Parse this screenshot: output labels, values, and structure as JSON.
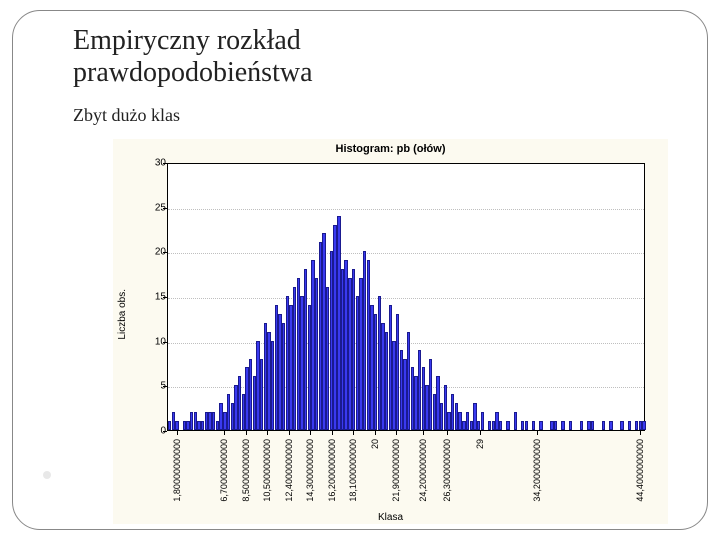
{
  "title_line1": "Empiryczny rozkład",
  "title_line2": "prawdopodobieństwa",
  "subtitle": "Zbyt dużo klas",
  "chart": {
    "type": "histogram",
    "title": "Histogram: pb (ołów)",
    "ylabel": "Liczba obs.",
    "xlabel": "Klasa",
    "background_color": "#fcfaf0",
    "plot_background": "#ffffff",
    "bar_color": "#3a3af0",
    "bar_border": "#1a1a90",
    "grid_color": "#bfbfbf",
    "border_color": "#000000",
    "title_fontsize": 11,
    "label_fontsize": 10,
    "tick_fontsize": 10,
    "xtick_fontsize": 9,
    "ylim": [
      0,
      30
    ],
    "ytick_step": 5,
    "yticks": [
      0,
      5,
      10,
      15,
      20,
      25,
      30
    ],
    "xtick_labels": [
      {
        "pos": 0.02,
        "text": "1,80000000000"
      },
      {
        "pos": 0.12,
        "text": "6,70000000000"
      },
      {
        "pos": 0.165,
        "text": "8,50000000000"
      },
      {
        "pos": 0.21,
        "text": "10,5000000000"
      },
      {
        "pos": 0.255,
        "text": "12,4000000000"
      },
      {
        "pos": 0.3,
        "text": "14,3000000000"
      },
      {
        "pos": 0.345,
        "text": "16,2000000000"
      },
      {
        "pos": 0.39,
        "text": "18,1000000000"
      },
      {
        "pos": 0.435,
        "text": "20"
      },
      {
        "pos": 0.48,
        "text": "21,9000000000"
      },
      {
        "pos": 0.535,
        "text": "24,2000000000"
      },
      {
        "pos": 0.585,
        "text": "26,3000000000"
      },
      {
        "pos": 0.655,
        "text": "29"
      },
      {
        "pos": 0.775,
        "text": "34,2000000000"
      },
      {
        "pos": 0.99,
        "text": "44,4000000000"
      }
    ],
    "bars_count": 130,
    "bars": [
      1,
      2,
      1,
      0,
      1,
      1,
      2,
      2,
      1,
      1,
      2,
      2,
      2,
      1,
      3,
      2,
      4,
      3,
      5,
      6,
      4,
      7,
      8,
      6,
      10,
      8,
      12,
      11,
      10,
      14,
      13,
      12,
      15,
      14,
      16,
      17,
      15,
      18,
      14,
      19,
      17,
      21,
      22,
      16,
      20,
      23,
      24,
      18,
      19,
      17,
      18,
      15,
      17,
      20,
      19,
      14,
      13,
      15,
      12,
      11,
      14,
      10,
      13,
      9,
      8,
      11,
      7,
      6,
      9,
      7,
      5,
      8,
      4,
      6,
      3,
      5,
      2,
      4,
      3,
      2,
      1,
      2,
      1,
      3,
      1,
      2,
      0,
      1,
      1,
      2,
      1,
      0,
      1,
      0,
      2,
      0,
      1,
      1,
      0,
      1,
      0,
      1,
      0,
      0,
      1,
      1,
      0,
      1,
      0,
      1,
      0,
      0,
      1,
      0,
      1,
      1,
      0,
      0,
      1,
      0,
      1,
      0,
      0,
      1,
      0,
      1,
      0,
      1,
      1,
      1
    ]
  }
}
